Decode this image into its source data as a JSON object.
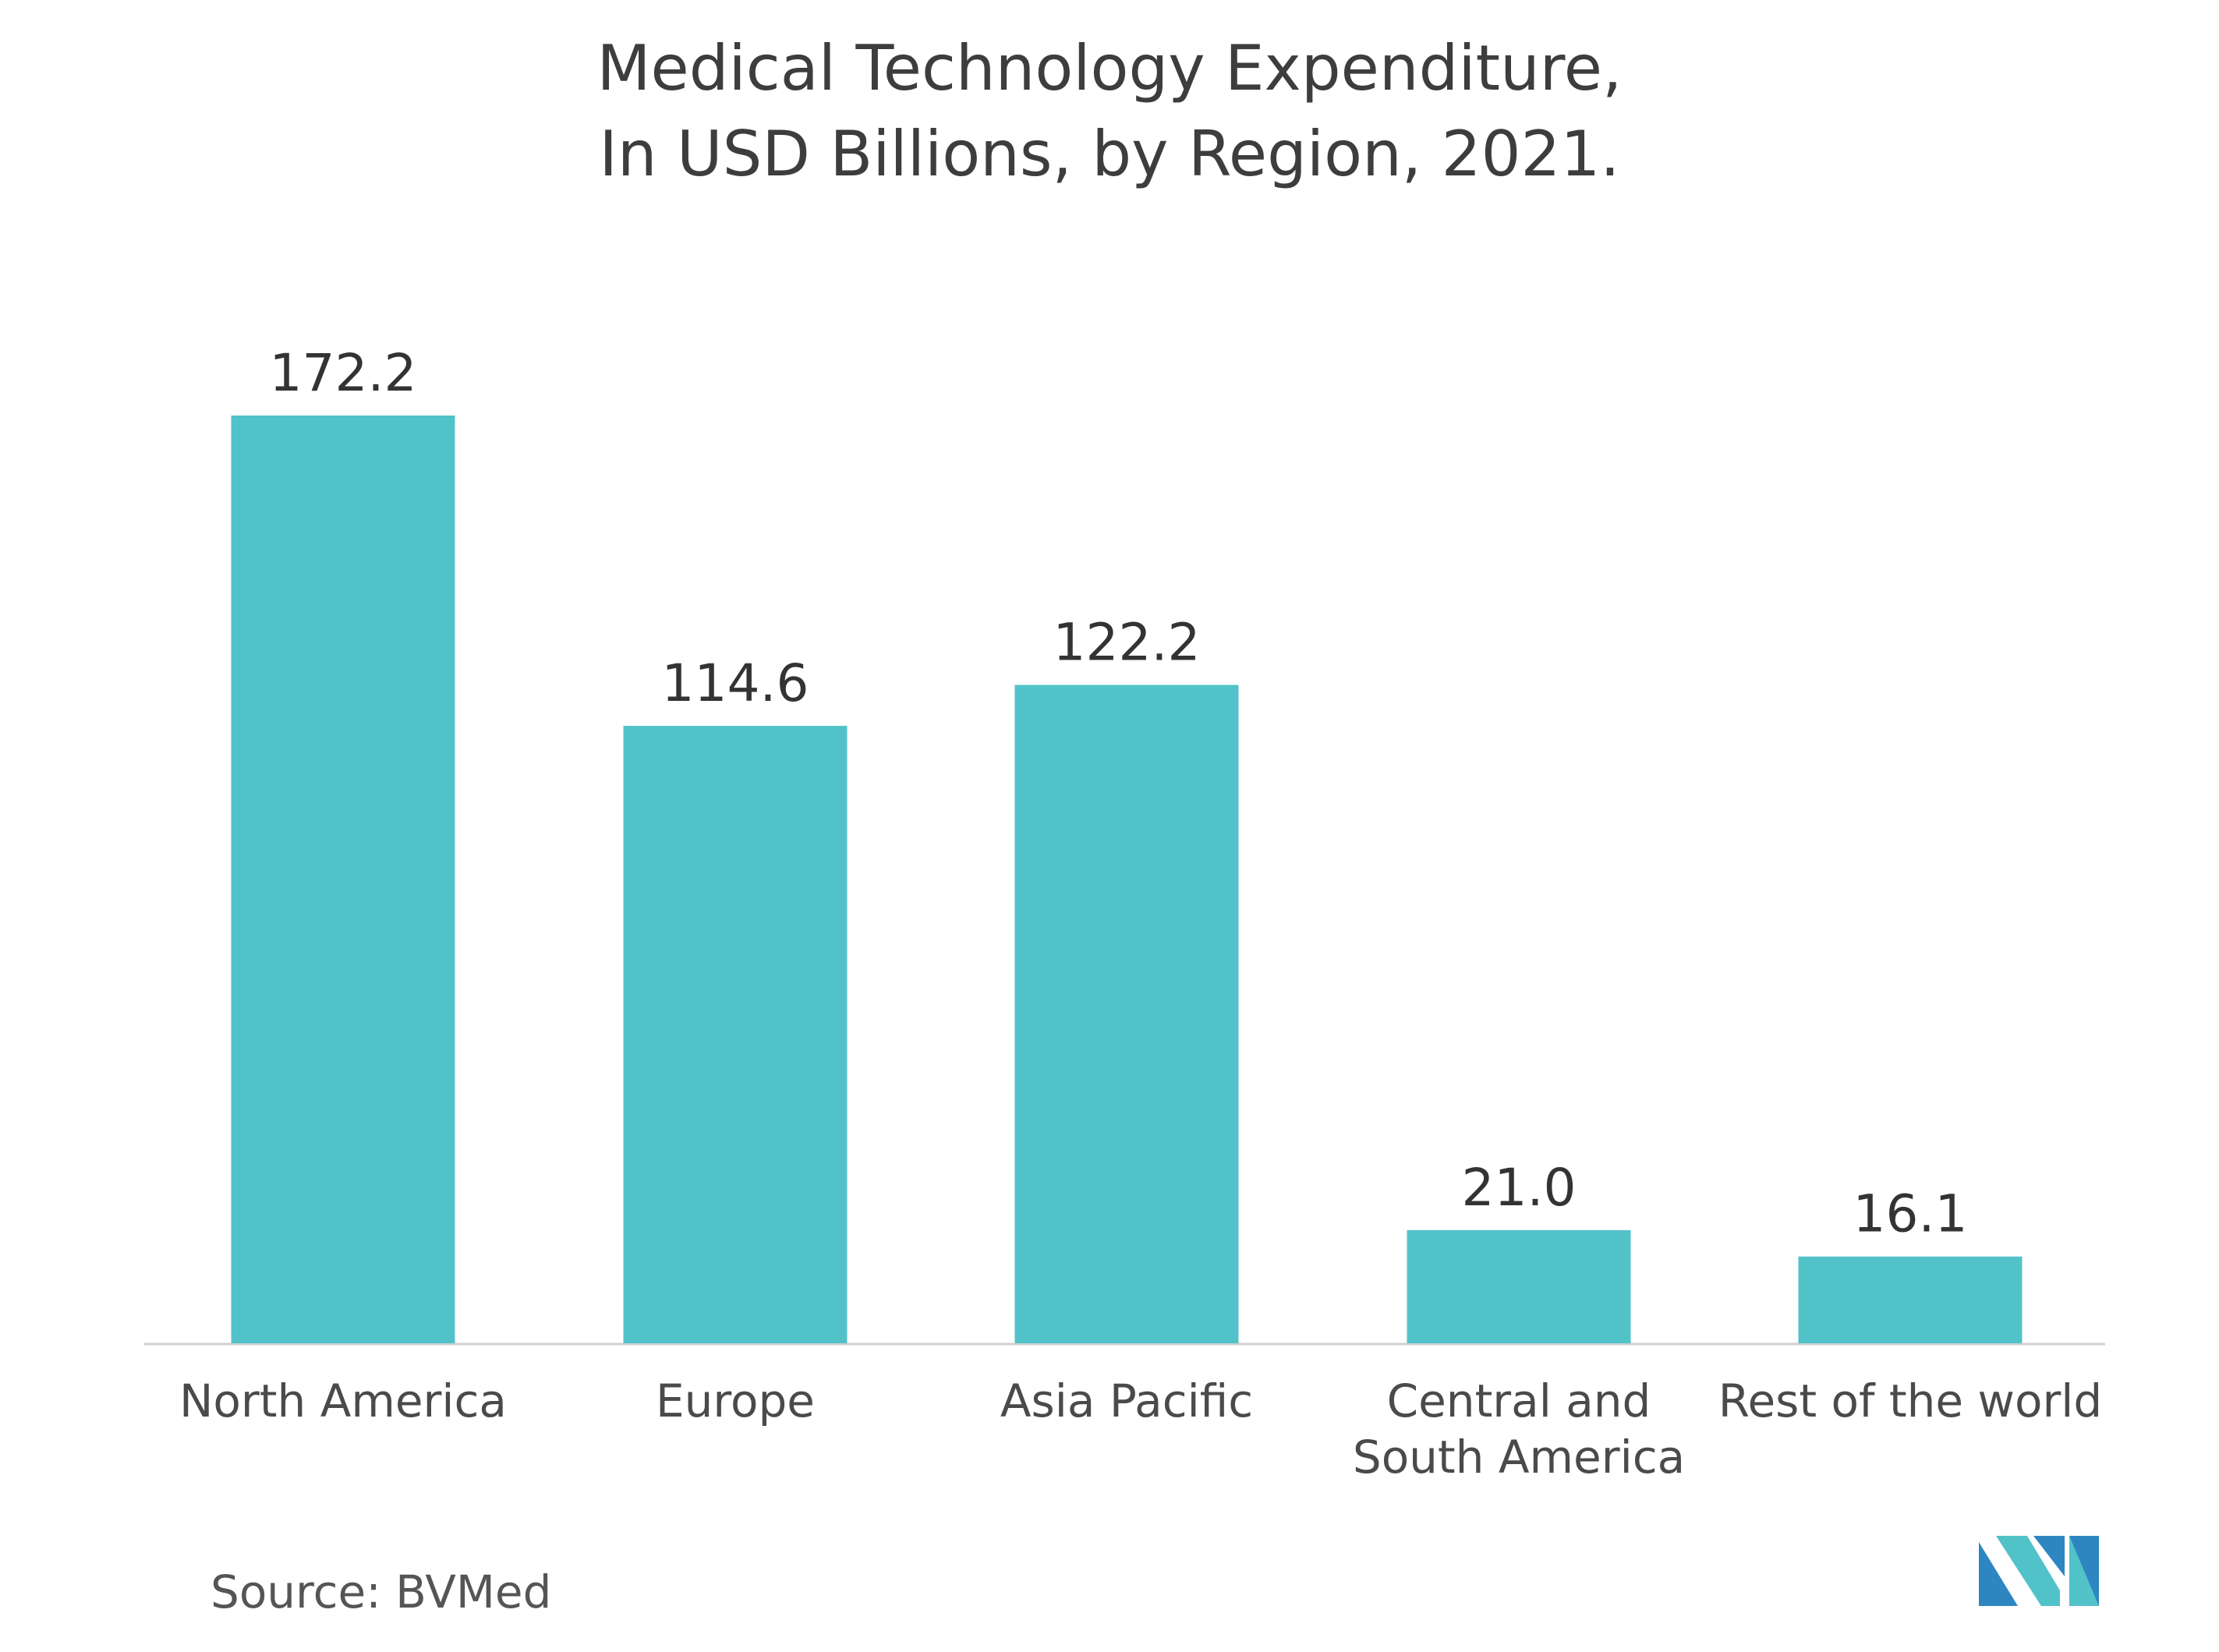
{
  "chart_data": {
    "type": "bar",
    "title_lines": [
      "Medical Technology Expenditure,",
      "In USD Billions, by Region, 2021."
    ],
    "categories": [
      [
        "North America"
      ],
      [
        "Europe"
      ],
      [
        "Asia Pacific"
      ],
      [
        "Central and",
        "South America"
      ],
      [
        "Rest of the world"
      ]
    ],
    "values": [
      172.2,
      114.6,
      122.2,
      21.0,
      16.1
    ],
    "value_labels": [
      "172.2",
      "114.6",
      "122.2",
      "21.0",
      "16.1"
    ],
    "ylim": [
      0,
      180
    ],
    "grid": false,
    "legend": "none",
    "bar_color": "#52c2c9",
    "axis_color": "#d0d0d0"
  },
  "source": "Source: BVMed",
  "logo": {
    "icon": "mordor-logo-icon",
    "colors": [
      "#2e86c1",
      "#52c2c9"
    ]
  }
}
